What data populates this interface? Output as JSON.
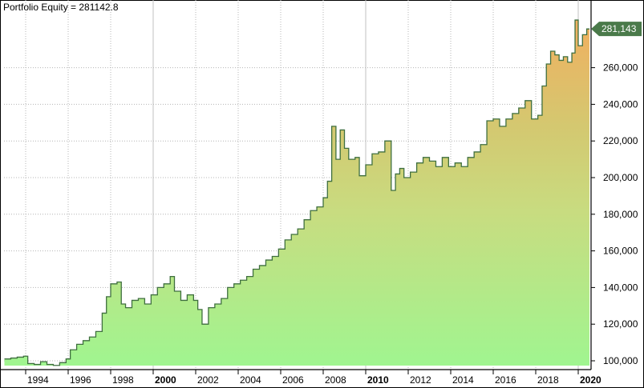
{
  "title": "Portfolio Equity = 281142.8",
  "last_value_label": "281,143",
  "colors": {
    "line": "#3f6f3f",
    "fill_bottom": "#a0f590",
    "fill_mid": "#d4c870",
    "fill_top": "#f0b060",
    "grid": "#b4b4b4",
    "last_value_bg": "#4a7a4a"
  },
  "chart_data": {
    "type": "area",
    "title": "Portfolio Equity = 281142.8",
    "xlabel": "",
    "ylabel": "",
    "ylim": [
      96000,
      290000
    ],
    "xlim": [
      1992.9,
      2020.6
    ],
    "grid": true,
    "y_axis_position": "right",
    "y_ticks": [
      100000,
      120000,
      140000,
      160000,
      180000,
      200000,
      220000,
      240000,
      260000
    ],
    "y_tick_labels": [
      "100,000",
      "120,000",
      "140,000",
      "160,000",
      "180,000",
      "200,000",
      "220,000",
      "240,000",
      "260,000"
    ],
    "x_ticks": [
      1994,
      1996,
      1998,
      2000,
      2002,
      2004,
      2006,
      2008,
      2010,
      2012,
      2014,
      2016,
      2018,
      2020
    ],
    "x_tick_labels": [
      "1994",
      "1996",
      "1998",
      "2000",
      "2002",
      "2004",
      "2006",
      "2008",
      "2010",
      "2012",
      "2014",
      "2016",
      "2018",
      "2020"
    ],
    "bold_x_ticks": [
      "2000",
      "2010",
      "2020"
    ],
    "last_value": 281142.8,
    "series": [
      {
        "name": "Portfolio Equity",
        "x": [
          1993.0,
          1993.3,
          1993.6,
          1993.9,
          1994.1,
          1994.4,
          1994.7,
          1995.0,
          1995.3,
          1995.6,
          1995.9,
          1996.1,
          1996.4,
          1996.7,
          1997.0,
          1997.3,
          1997.6,
          1997.8,
          1998.0,
          1998.3,
          1998.5,
          1998.7,
          1999.0,
          1999.3,
          1999.6,
          1999.9,
          2000.2,
          2000.5,
          2000.8,
          2001.0,
          2001.3,
          2001.6,
          2001.9,
          2002.1,
          2002.3,
          2002.6,
          2002.9,
          2003.2,
          2003.5,
          2003.8,
          2004.1,
          2004.4,
          2004.7,
          2005.0,
          2005.3,
          2005.6,
          2005.9,
          2006.2,
          2006.5,
          2006.8,
          2007.1,
          2007.4,
          2007.7,
          2008.0,
          2008.2,
          2008.4,
          2008.6,
          2008.8,
          2009.0,
          2009.2,
          2009.5,
          2009.7,
          2010.0,
          2010.3,
          2010.6,
          2010.9,
          2011.2,
          2011.4,
          2011.6,
          2011.8,
          2012.1,
          2012.4,
          2012.7,
          2013.0,
          2013.3,
          2013.6,
          2013.9,
          2014.2,
          2014.5,
          2014.8,
          2015.1,
          2015.4,
          2015.7,
          2016.0,
          2016.3,
          2016.6,
          2016.9,
          2017.2,
          2017.5,
          2017.8,
          2018.1,
          2018.3,
          2018.5,
          2018.7,
          2018.9,
          2019.1,
          2019.3,
          2019.5,
          2019.7,
          2019.85,
          2020.0,
          2020.2,
          2020.4
        ],
        "values": [
          101000,
          101500,
          102000,
          102500,
          98500,
          98000,
          99500,
          98000,
          97500,
          99000,
          101000,
          106000,
          109000,
          111000,
          113000,
          116000,
          126000,
          135000,
          142000,
          143000,
          131000,
          129000,
          133000,
          134000,
          131000,
          136000,
          140000,
          142000,
          146000,
          138000,
          133000,
          136000,
          133000,
          128000,
          120000,
          129000,
          131000,
          134000,
          140000,
          142000,
          144000,
          146000,
          150000,
          152000,
          155000,
          157000,
          161000,
          166000,
          169000,
          172000,
          177000,
          182000,
          184000,
          189000,
          198000,
          228000,
          210000,
          226000,
          216000,
          210000,
          211000,
          201000,
          207000,
          213000,
          214000,
          220000,
          193000,
          202000,
          205000,
          200000,
          203000,
          208000,
          211000,
          209000,
          206000,
          211000,
          206000,
          208000,
          206000,
          211000,
          214000,
          218000,
          231000,
          232000,
          228000,
          232000,
          235000,
          238000,
          242000,
          232000,
          234000,
          250000,
          262000,
          269000,
          267000,
          264000,
          266000,
          263000,
          268000,
          286000,
          272000,
          278000,
          281143
        ]
      }
    ]
  }
}
